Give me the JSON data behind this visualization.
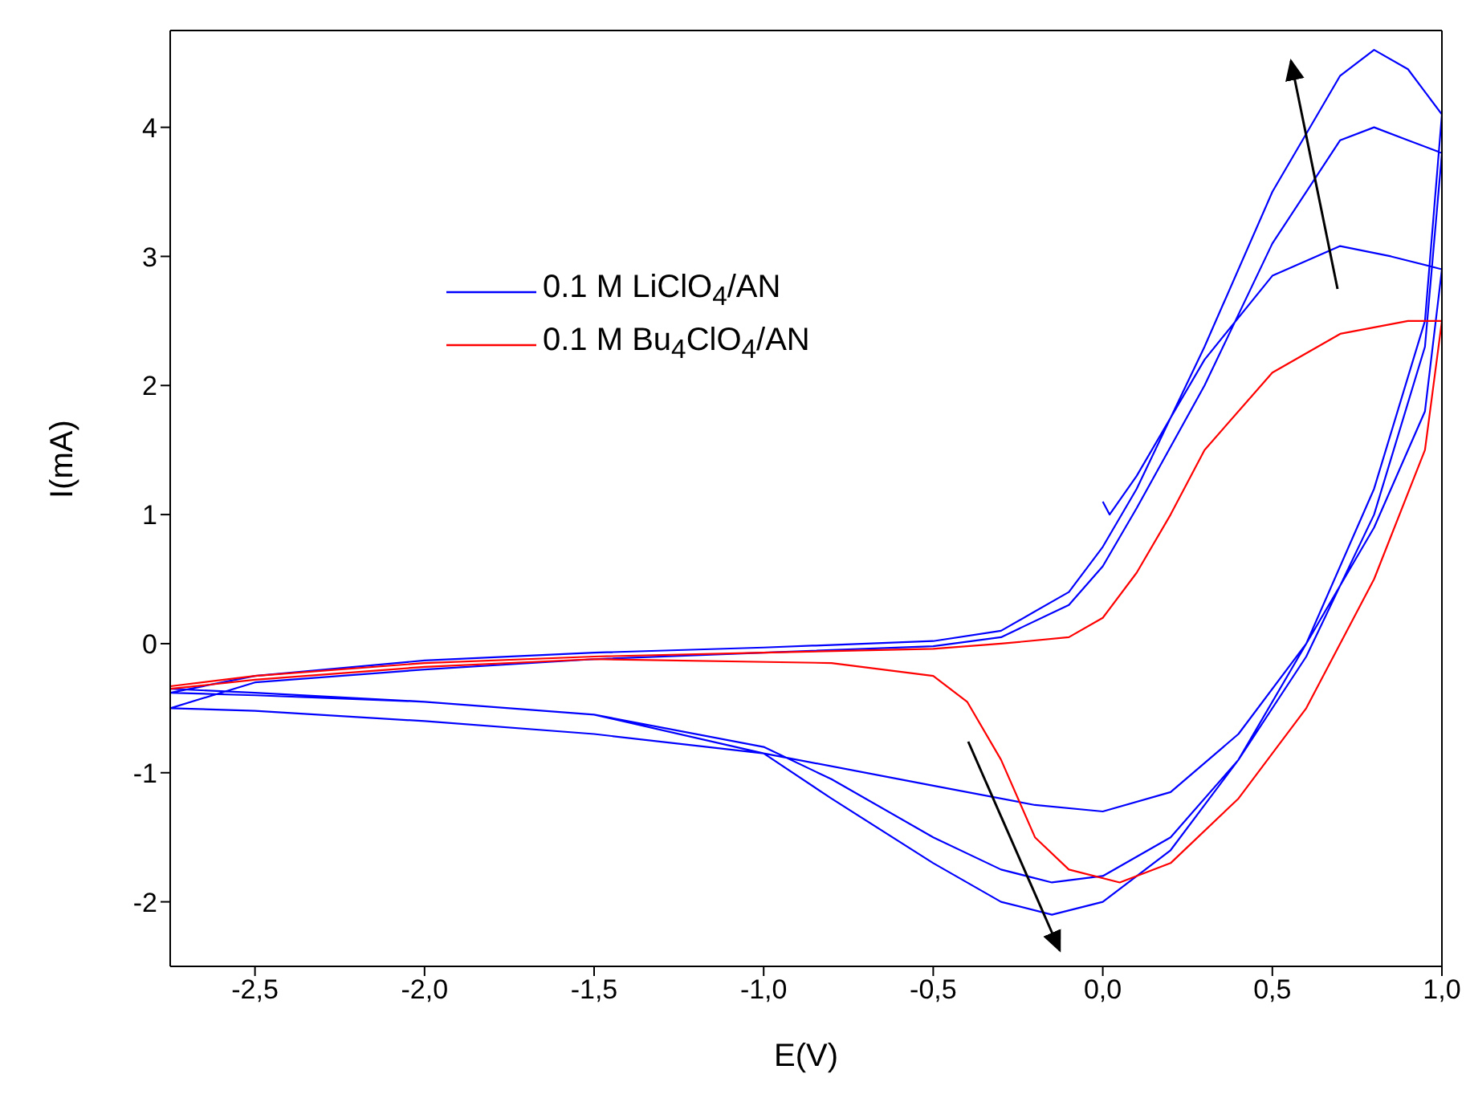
{
  "chart_data": {
    "type": "line",
    "xlabel": "E(V)",
    "ylabel": "I(mA)",
    "xlim": [
      -2.75,
      1.0
    ],
    "ylim": [
      -2.5,
      4.75
    ],
    "xticks": [
      {
        "value": -2.5,
        "label": "-2,5"
      },
      {
        "value": -2.0,
        "label": "-2,0"
      },
      {
        "value": -1.5,
        "label": "-1,5"
      },
      {
        "value": -1.0,
        "label": "-1,0"
      },
      {
        "value": -0.5,
        "label": "-0,5"
      },
      {
        "value": 0.0,
        "label": "0,0"
      },
      {
        "value": 0.5,
        "label": "0,5"
      },
      {
        "value": 1.0,
        "label": "1,0"
      }
    ],
    "yticks": [
      -2,
      -1,
      0,
      1,
      2,
      3,
      4
    ],
    "legend": "top left",
    "marker": "none",
    "line_style": "solid",
    "series": [
      {
        "name": "0.1 M LiClO$_{4}$/AN",
        "color": "#0000ff",
        "x": [
          0.0,
          0.02,
          0.1,
          0.3,
          0.5,
          0.7,
          0.85,
          1.0,
          0.95,
          0.8,
          0.6,
          0.4,
          0.2,
          0.0,
          -0.2,
          -0.5,
          -1.0,
          -1.5,
          -2.0,
          -2.5,
          -2.75,
          -2.5,
          -2.0,
          -1.5,
          -1.0,
          -0.5,
          -0.3,
          -0.1,
          0.0,
          0.1,
          0.3,
          0.5,
          0.7,
          0.8,
          0.9,
          1.0,
          0.95,
          0.8,
          0.6,
          0.4,
          0.2,
          0.0,
          -0.15,
          -0.3,
          -0.5,
          -0.8,
          -1.0,
          -1.5,
          -2.0,
          -2.5,
          -2.75,
          -2.5,
          -2.0,
          -1.5,
          -1.0,
          -0.5,
          -0.3,
          -0.1,
          0.0,
          0.1,
          0.3,
          0.5,
          0.7,
          0.8,
          0.9,
          1.0,
          0.95,
          0.8,
          0.6,
          0.4,
          0.2,
          0.0,
          -0.15,
          -0.3,
          -0.5,
          -0.8,
          -1.0,
          -1.5,
          -2.0,
          -2.5,
          -2.75
        ],
        "values": [
          1.1,
          1.0,
          1.3,
          2.2,
          2.85,
          3.08,
          3.0,
          2.9,
          1.8,
          0.9,
          0.0,
          -0.7,
          -1.15,
          -1.3,
          -1.25,
          -1.1,
          -0.85,
          -0.7,
          -0.6,
          -0.52,
          -0.5,
          -0.3,
          -0.2,
          -0.12,
          -0.07,
          -0.02,
          0.05,
          0.3,
          0.6,
          1.05,
          2.0,
          3.1,
          3.9,
          4.0,
          3.9,
          3.8,
          2.3,
          1.0,
          -0.1,
          -0.9,
          -1.5,
          -1.8,
          -1.85,
          -1.75,
          -1.5,
          -1.05,
          -0.8,
          -0.55,
          -0.45,
          -0.4,
          -0.38,
          -0.25,
          -0.13,
          -0.07,
          -0.03,
          0.02,
          0.1,
          0.4,
          0.75,
          1.2,
          2.3,
          3.5,
          4.4,
          4.6,
          4.45,
          4.1,
          2.5,
          1.2,
          0.0,
          -0.9,
          -1.6,
          -2.0,
          -2.1,
          -2.0,
          -1.7,
          -1.2,
          -0.85,
          -0.55,
          -0.45,
          -0.38,
          -0.35
        ]
      },
      {
        "name": "0.1 M Bu$_{4}$ClO$_{4}$/AN",
        "color": "#ff0000",
        "x": [
          -2.75,
          -2.5,
          -2.0,
          -1.5,
          -1.0,
          -0.5,
          -0.3,
          -0.1,
          0.0,
          0.1,
          0.2,
          0.3,
          0.5,
          0.7,
          0.9,
          1.0,
          0.95,
          0.8,
          0.6,
          0.4,
          0.2,
          0.05,
          -0.1,
          -0.2,
          -0.3,
          -0.4,
          -0.5,
          -0.8,
          -1.5,
          -2.0,
          -2.5,
          -2.75
        ],
        "values": [
          -0.33,
          -0.25,
          -0.15,
          -0.1,
          -0.07,
          -0.04,
          0.0,
          0.05,
          0.2,
          0.55,
          1.0,
          1.5,
          2.1,
          2.4,
          2.5,
          2.5,
          1.5,
          0.5,
          -0.5,
          -1.2,
          -1.7,
          -1.85,
          -1.75,
          -1.5,
          -0.9,
          -0.45,
          -0.25,
          -0.15,
          -0.12,
          -0.18,
          -0.28,
          -0.35
        ]
      }
    ]
  }
}
